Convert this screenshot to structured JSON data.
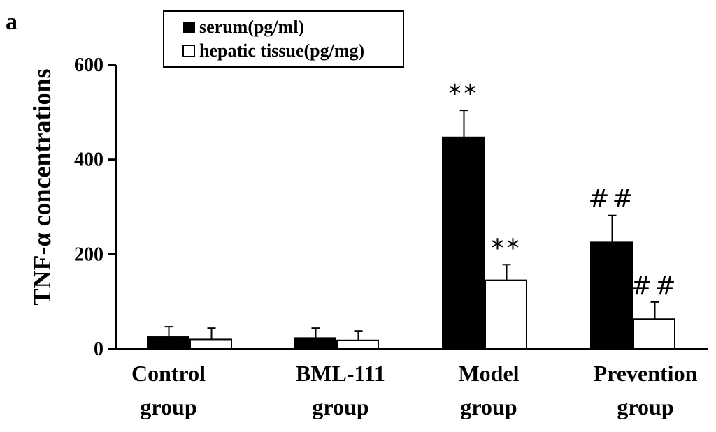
{
  "panel_label": "a",
  "chart_data": {
    "type": "bar",
    "ylabel": "TNF-α concentrations",
    "ylim": [
      0,
      600
    ],
    "yticks": [
      0,
      200,
      400,
      600
    ],
    "grid": false,
    "legend_placement": "top-left",
    "categories": [
      {
        "line1": "Control",
        "line2": "group"
      },
      {
        "line1": "BML-111",
        "line2": "group"
      },
      {
        "line1": "Model",
        "line2": "group"
      },
      {
        "line1": "Prevention",
        "line2": "group"
      }
    ],
    "series": [
      {
        "name": "serum(pg/ml)",
        "fill": "#000000",
        "values": [
          25,
          23,
          447,
          225
        ],
        "errors": [
          22,
          21,
          57,
          57
        ],
        "annotations": [
          "",
          "",
          "**",
          "##"
        ]
      },
      {
        "name": "hepatic tissue(pg/mg)",
        "fill": "#ffffff",
        "values": [
          20,
          18,
          145,
          63
        ],
        "errors": [
          24,
          20,
          33,
          36
        ],
        "annotations": [
          "",
          "",
          "**",
          "##"
        ]
      }
    ]
  }
}
